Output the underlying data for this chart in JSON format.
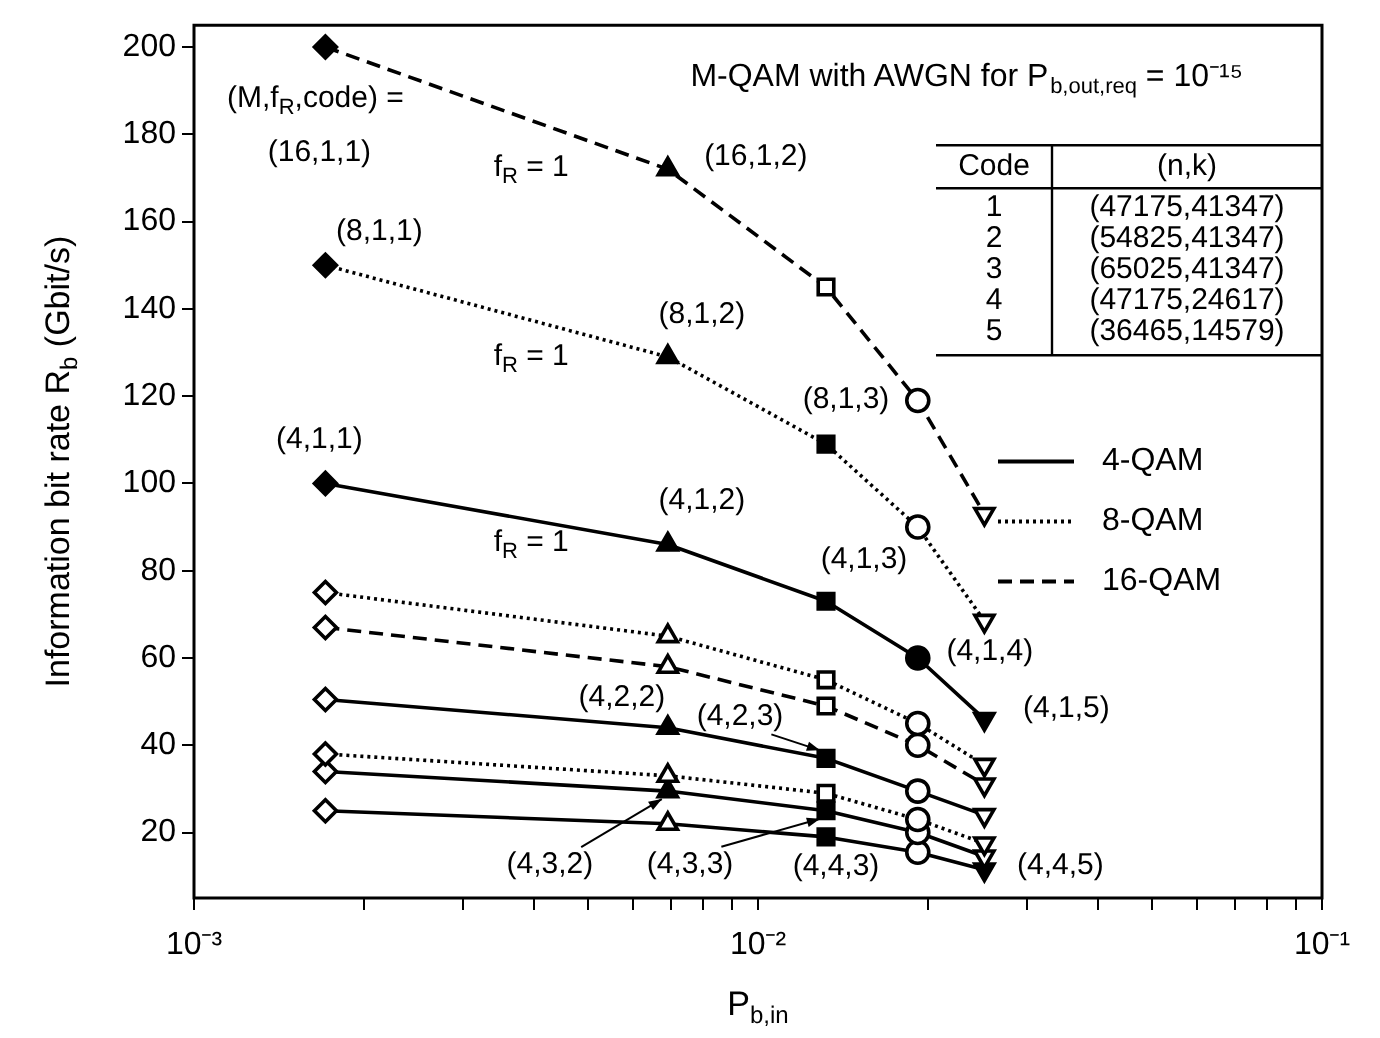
{
  "chart_data": {
    "type": "line",
    "title": "M-QAM with AWGN for P$_{b,out,req}$ = 10⁻¹⁵",
    "xlabel": "P$_{b,in}$",
    "ylabel": "Information bit rate R$_{b}$ (Gbit/s)",
    "x": [
      0.00171,
      0.00692,
      0.0132,
      0.0192,
      0.0252
    ],
    "series": [
      {
        "name": "4-QAM",
        "color": "#000000",
        "line_style": "solid",
        "values": [
          100,
          86,
          73,
          60,
          46
        ],
        "marker": [
          "diamond",
          "triangle",
          "square",
          "circle",
          "triangle-down"
        ],
        "colors": [
          "#000000",
          "#000000",
          "#000000",
          "#000000",
          "#000000"
        ]
      },
      {
        "name": "8-QAM",
        "color": "#000000",
        "line_style": "dotted",
        "values": [
          150,
          129,
          109,
          90,
          68.5
        ],
        "marker": [
          "diamond",
          "triangle",
          "square",
          "circle",
          "triangle-down"
        ],
        "colors": [
          "#000000",
          "#000000",
          "#000000",
          "#ffffff",
          "#ffffff"
        ]
      },
      {
        "name": "16-QAM",
        "color": "#000000",
        "line_style": "dashed",
        "values": [
          200,
          172,
          145,
          119,
          93
        ],
        "marker": [
          "diamond",
          "triangle",
          "square",
          "circle",
          "triangle-down"
        ],
        "colors": [
          "#000000",
          "#000000",
          "#ffffff",
          "#ffffff",
          "#ffffff"
        ]
      },
      {
        "color": "#000000",
        "line_style": "dotted",
        "values": [
          75,
          65,
          55,
          45,
          35.5
        ],
        "marker": [
          "diamond",
          "triangle",
          "square",
          "circle",
          "triangle-down"
        ],
        "colors": [
          "#ffffff",
          "#ffffff",
          "#ffffff",
          "#ffffff",
          "#ffffff"
        ]
      },
      {
        "color": "#000000",
        "line_style": "dashed",
        "values": [
          67,
          58,
          49,
          40,
          31
        ],
        "marker": [
          "diamond",
          "triangle",
          "square",
          "circle",
          "triangle-down"
        ],
        "colors": [
          "#ffffff",
          "#ffffff",
          "#ffffff",
          "#ffffff",
          "#ffffff"
        ]
      },
      {
        "color": "#000000",
        "line_style": "solid",
        "values": [
          50.5,
          44,
          37,
          29.5,
          24
        ],
        "marker": [
          "diamond",
          "triangle",
          "square",
          "circle",
          "triangle-down"
        ],
        "colors": [
          "#ffffff",
          "#000000",
          "#000000",
          "#ffffff",
          "#ffffff"
        ]
      },
      {
        "color": "#000000",
        "line_style": "dotted",
        "values": [
          38,
          33,
          29,
          23,
          17.5
        ],
        "marker": [
          "diamond",
          "triangle",
          "square",
          "circle",
          "triangle-down"
        ],
        "colors": [
          "#ffffff",
          "#ffffff",
          "#ffffff",
          "#ffffff",
          "#ffffff"
        ]
      },
      {
        "color": "#000000",
        "line_style": "solid",
        "values": [
          34,
          29.5,
          25,
          20,
          14.5
        ],
        "marker": [
          "diamond",
          "triangle",
          "square",
          "circle",
          "triangle-down"
        ],
        "colors": [
          "#ffffff",
          "#000000",
          "#000000",
          "#ffffff",
          "#ffffff"
        ]
      },
      {
        "color": "#000000",
        "line_style": "solid",
        "values": [
          25,
          22,
          19,
          15.5,
          11.5
        ],
        "marker": [
          "diamond",
          "triangle",
          "square",
          "circle",
          "triangle-down"
        ],
        "colors": [
          "#ffffff",
          "#ffffff",
          "#000000",
          "#ffffff",
          "#000000"
        ]
      }
    ],
    "log": "x",
    "xlim": [
      0.001,
      0.1
    ],
    "ylim": [
      5,
      205
    ],
    "xticks": [
      {
        "value": 0.001,
        "label": "10⁻³"
      },
      {
        "value": 0.002,
        "label": null
      },
      {
        "value": 0.003,
        "label": null
      },
      {
        "value": 0.004,
        "label": null
      },
      {
        "value": 0.005,
        "label": null
      },
      {
        "value": 0.006,
        "label": null
      },
      {
        "value": 0.007,
        "label": null
      },
      {
        "value": 0.008,
        "label": null
      },
      {
        "value": 0.009,
        "label": null
      },
      {
        "value": 0.01,
        "label": "10⁻²"
      },
      {
        "value": 0.02,
        "label": null
      },
      {
        "value": 0.03,
        "label": null
      },
      {
        "value": 0.04,
        "label": null
      },
      {
        "value": 0.05,
        "label": null
      },
      {
        "value": 0.06,
        "label": null
      },
      {
        "value": 0.07,
        "label": null
      },
      {
        "value": 0.08,
        "label": null
      },
      {
        "value": 0.09,
        "label": null
      },
      {
        "value": 0.1,
        "label": "10⁻¹"
      }
    ],
    "yticks": [
      20,
      40,
      60,
      80,
      100,
      120,
      140,
      160,
      180,
      200
    ],
    "legend": "right",
    "annotations": [
      "Code",
      "(n,k)",
      "1",
      "(47175,41347)",
      "2",
      "(54825,41347)",
      "3",
      "(65025,41347)",
      "4",
      "(47175,24617)",
      "5",
      "(36465,14579)",
      {
        "text": "(M,f$_{R}$,code) =",
        "x": 0.00171,
        "y": 200
      },
      {
        "text": "(16,1,1)",
        "x": 0.00171,
        "y": 200
      },
      {
        "text": "f$_{R}$ = 1",
        "x": 0.00423,
        "y": 182
      },
      {
        "text": "f$_{R}$ = 1",
        "x": 0.00423,
        "y": 136.4
      },
      {
        "text": "f$_{R}$ = 1",
        "x": 0.00423,
        "y": 90.9
      },
      {
        "text": "(16,1,2)",
        "x": 0.00692,
        "y": 172
      },
      {
        "text": "(8,1,1)",
        "x": 0.00171,
        "y": 150
      },
      {
        "text": "(8,1,2)",
        "x": 0.00692,
        "y": 129
      },
      {
        "text": "(8,1,3)",
        "x": 0.0132,
        "y": 109
      },
      {
        "text": "(4,1,1)",
        "x": 0.00171,
        "y": 100
      },
      {
        "text": "(4,1,2)",
        "x": 0.00692,
        "y": 86
      },
      {
        "text": "(4,1,3)",
        "x": 0.0132,
        "y": 73
      },
      {
        "text": "(4,1,4)",
        "x": 0.0192,
        "y": 60
      },
      {
        "text": "(4,1,5)",
        "x": 0.0252,
        "y": 46
      },
      {
        "text": "(4,2,2)",
        "x": 0.00692,
        "y": 44
      },
      {
        "text": "(4,2,3)",
        "x": 0.0132,
        "y": 37
      },
      {
        "text": "(4,3,2)",
        "x": 0.00692,
        "y": 29.5
      },
      {
        "text": "(4,3,3)",
        "x": 0.0132,
        "y": 25
      },
      {
        "text": "(4,4,3)",
        "x": 0.0132,
        "y": 19
      },
      {
        "text": "(4,4,5)",
        "x": 0.0252,
        "y": 11.5
      }
    ]
  }
}
